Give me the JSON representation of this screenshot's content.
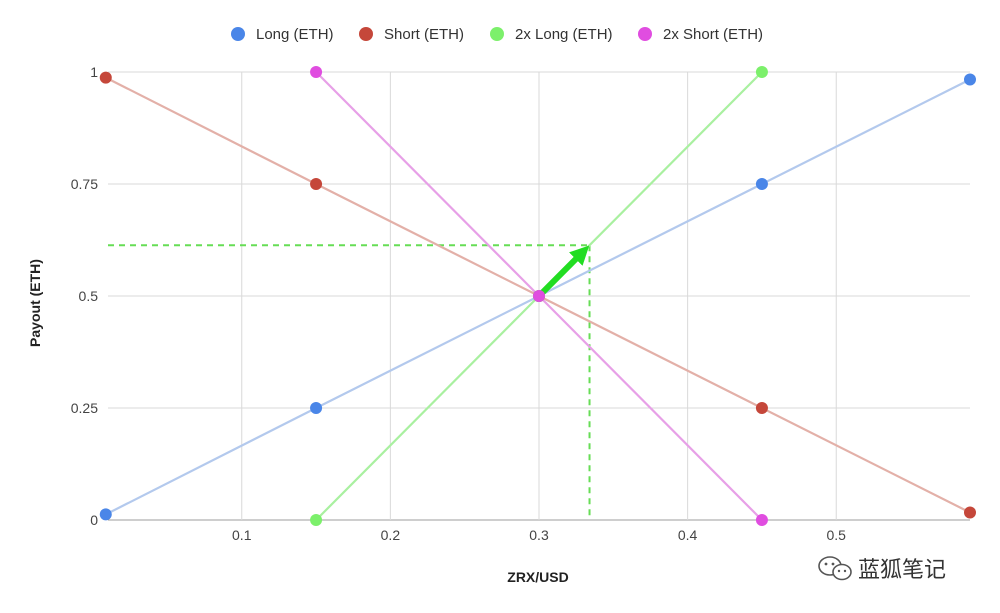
{
  "chart_data": {
    "type": "line",
    "title": "",
    "xlabel": "ZRX/USD",
    "ylabel": "Payout (ETH)",
    "xlim": [
      0.01,
      0.59
    ],
    "ylim": [
      0,
      1
    ],
    "xticks": [
      0.1,
      0.2,
      0.3,
      0.4,
      0.5
    ],
    "xtick_labels": [
      "0.1",
      "0.2",
      "0.3",
      "0.4",
      "0.5"
    ],
    "yticks": [
      0,
      0.25,
      0.5,
      0.75,
      1
    ],
    "ytick_labels": [
      "0",
      "0.25",
      "0.5",
      "0.75",
      "1"
    ],
    "grid": true,
    "legend_position": "top-center",
    "series": [
      {
        "name": "Long (ETH)",
        "color": "#4a86e8",
        "line_color": "#b3c9ed",
        "points": [
          [
            0.0085,
            0.0125
          ],
          [
            0.15,
            0.25
          ],
          [
            0.3,
            0.5
          ],
          [
            0.45,
            0.75
          ],
          [
            0.59,
            0.9833
          ]
        ]
      },
      {
        "name": "Short (ETH)",
        "color": "#c5473a",
        "line_color": "#e3b0a8",
        "points": [
          [
            0.0085,
            0.9875
          ],
          [
            0.15,
            0.75
          ],
          [
            0.3,
            0.5
          ],
          [
            0.45,
            0.25
          ],
          [
            0.59,
            0.0167
          ]
        ]
      },
      {
        "name": "2x Long (ETH)",
        "color": "#7cf06b",
        "line_color": "#a9f0a0",
        "points": [
          [
            0.15,
            0
          ],
          [
            0.3,
            0.5
          ],
          [
            0.45,
            1
          ]
        ]
      },
      {
        "name": "2x Short (ETH)",
        "color": "#e04de0",
        "line_color": "#e7a0e7",
        "points": [
          [
            0.15,
            1
          ],
          [
            0.3,
            0.5
          ],
          [
            0.45,
            0
          ]
        ]
      }
    ],
    "annotations": {
      "dashed_guide_color": "#66dd55",
      "dashed_point": [
        0.334,
        0.6133
      ],
      "arrow_color": "#22dd22",
      "arrow_from": [
        0.3,
        0.5
      ],
      "arrow_to": [
        0.334,
        0.6133
      ]
    }
  },
  "watermark": {
    "text": "蓝狐笔记"
  }
}
